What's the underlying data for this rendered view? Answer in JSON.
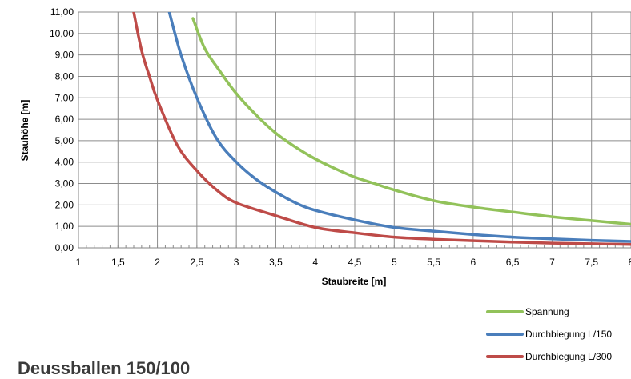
{
  "chart_data": {
    "type": "line",
    "title": "",
    "xlabel": "Staubreite [m]",
    "ylabel": "Stauhöhe [m]",
    "xlim": [
      1,
      8
    ],
    "ylim": [
      0,
      11
    ],
    "xticks": [
      1,
      1.5,
      2,
      2.5,
      3,
      3.5,
      4,
      4.5,
      5,
      5.5,
      6,
      6.5,
      7,
      7.5,
      8
    ],
    "xtick_labels": [
      "1",
      "1,5",
      "2",
      "2,5",
      "3",
      "3,5",
      "4",
      "4,5",
      "5",
      "5,5",
      "6",
      "6,5",
      "7",
      "7,5",
      "8"
    ],
    "yticks": [
      0,
      1,
      2,
      3,
      4,
      5,
      6,
      7,
      8,
      9,
      10,
      11
    ],
    "ytick_labels": [
      "0,00",
      "1,00",
      "2,00",
      "3,00",
      "4,00",
      "5,00",
      "6,00",
      "7,00",
      "8,00",
      "9,00",
      "10,00",
      "11,00"
    ],
    "grid": true,
    "legend_position": "bottom-right",
    "series": [
      {
        "name": "Spannung",
        "color": "#92c25a",
        "x": [
          2.45,
          2.6,
          2.8,
          3.0,
          3.25,
          3.5,
          3.75,
          4.0,
          4.25,
          4.5,
          4.75,
          5.0,
          5.5,
          6.0,
          6.5,
          7.0,
          7.5,
          8.0
        ],
        "y": [
          10.7,
          9.3,
          8.2,
          7.2,
          6.2,
          5.35,
          4.7,
          4.15,
          3.7,
          3.3,
          3.0,
          2.7,
          2.2,
          1.9,
          1.67,
          1.45,
          1.27,
          1.1
        ]
      },
      {
        "name": "Durchbiegung L/150",
        "color": "#4a7ebb",
        "x": [
          2.15,
          2.3,
          2.5,
          2.75,
          3.0,
          3.25,
          3.5,
          3.75,
          4.0,
          4.5,
          5.0,
          5.5,
          6.0,
          6.5,
          7.0,
          7.5,
          8.0
        ],
        "y": [
          11.0,
          9.0,
          7.0,
          5.1,
          4.0,
          3.2,
          2.6,
          2.1,
          1.75,
          1.3,
          0.95,
          0.78,
          0.62,
          0.5,
          0.42,
          0.35,
          0.3
        ]
      },
      {
        "name": "Durchbiegung L/300",
        "color": "#be4b48",
        "x": [
          1.7,
          1.8,
          1.9,
          2.0,
          2.25,
          2.5,
          2.75,
          3.0,
          3.5,
          4.0,
          4.5,
          5.0,
          5.5,
          6.0,
          6.5,
          7.0,
          7.5,
          8.0
        ],
        "y": [
          11.0,
          9.2,
          8.0,
          6.9,
          4.8,
          3.6,
          2.7,
          2.1,
          1.5,
          0.95,
          0.7,
          0.5,
          0.4,
          0.33,
          0.27,
          0.22,
          0.19,
          0.16
        ]
      }
    ]
  },
  "page": {
    "heading": "Deussballen 150/100"
  }
}
